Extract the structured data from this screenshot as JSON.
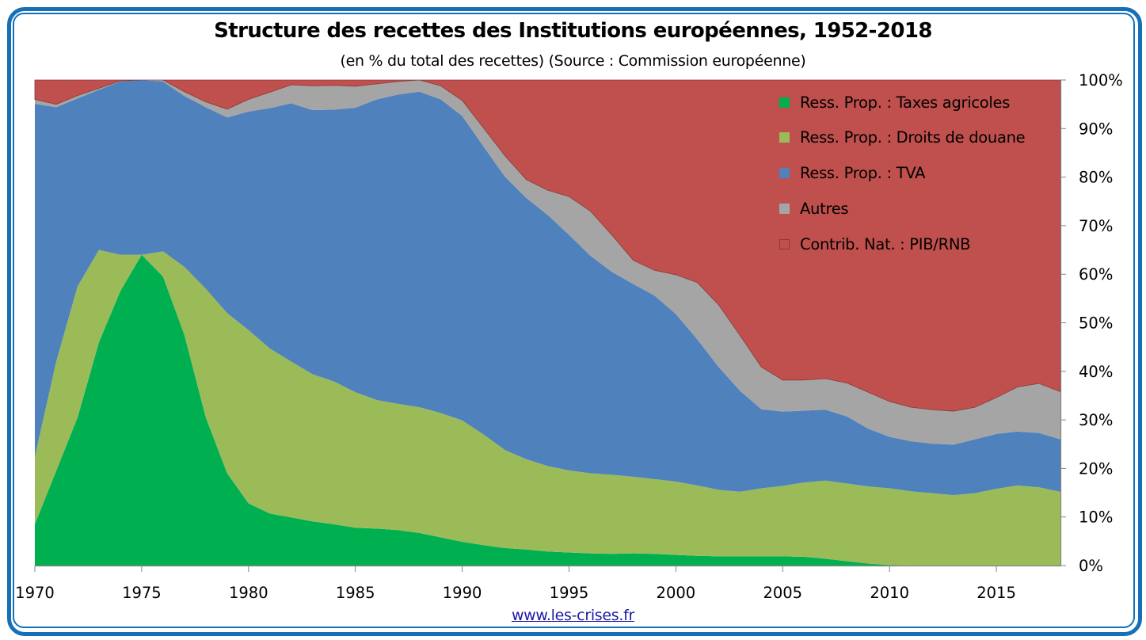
{
  "chart_data": {
    "type": "area",
    "stacked": true,
    "normalized_percent": true,
    "title": "Structure des recettes des Institutions européennes, 1952-2018",
    "subtitle": "(en % du total des recettes) (Source : Commission européenne)",
    "xlabel": "",
    "ylabel": "",
    "xlim": [
      1970,
      2018
    ],
    "ylim": [
      0,
      100
    ],
    "x_ticks": [
      "1970",
      "1975",
      "1980",
      "1985",
      "1990",
      "1995",
      "2000",
      "2005",
      "2010",
      "2015"
    ],
    "x_tick_values": [
      1970,
      1975,
      1980,
      1985,
      1990,
      1995,
      2000,
      2005,
      2010,
      2015
    ],
    "y_ticks": [
      "0%",
      "10%",
      "20%",
      "30%",
      "40%",
      "50%",
      "60%",
      "70%",
      "80%",
      "90%",
      "100%"
    ],
    "y_tick_values": [
      0,
      10,
      20,
      30,
      40,
      50,
      60,
      70,
      80,
      90,
      100
    ],
    "y_axis_side": "right",
    "grid": false,
    "legend_position": "top-right",
    "x": [
      1970,
      1971,
      1972,
      1973,
      1974,
      1975,
      1976,
      1977,
      1978,
      1979,
      1980,
      1981,
      1982,
      1983,
      1984,
      1985,
      1986,
      1987,
      1988,
      1989,
      1990,
      1991,
      1992,
      1993,
      1994,
      1995,
      1996,
      1997,
      1998,
      1999,
      2000,
      2001,
      2002,
      2003,
      2004,
      2005,
      2006,
      2007,
      2008,
      2009,
      2010,
      2011,
      2012,
      2013,
      2014,
      2015,
      2016,
      2017,
      2018
    ],
    "series": [
      {
        "name": "Ress. Prop. : Taxes agricoles",
        "color": "#00b050",
        "values": [
          8.5,
          19.5,
          30.5,
          46.0,
          56.5,
          64.0,
          59.5,
          47.5,
          30.5,
          19.0,
          12.8,
          10.7,
          9.9,
          9.1,
          8.5,
          7.8,
          7.6,
          7.3,
          6.7,
          5.8,
          4.9,
          4.2,
          3.6,
          3.3,
          2.9,
          2.7,
          2.5,
          2.4,
          2.5,
          2.4,
          2.2,
          2.0,
          1.9,
          1.9,
          1.9,
          1.9,
          1.8,
          1.4,
          0.9,
          0.4,
          0.1,
          0.0,
          0.0,
          0.0,
          0.0,
          0.0,
          0.0,
          0.0,
          0.0
        ]
      },
      {
        "name": "Ress. Prop. : Droits de douane",
        "color": "#9bbb59",
        "values": [
          13.9,
          22.5,
          27.0,
          19.0,
          7.5,
          0.0,
          5.2,
          14.0,
          26.5,
          33.0,
          35.7,
          34.0,
          32.1,
          30.3,
          29.4,
          27.9,
          26.5,
          26.0,
          25.9,
          25.6,
          25.0,
          22.8,
          20.2,
          18.6,
          17.6,
          16.9,
          16.5,
          16.3,
          15.8,
          15.4,
          15.1,
          14.5,
          13.7,
          13.3,
          14.0,
          14.5,
          15.3,
          16.1,
          16.0,
          15.9,
          15.8,
          15.3,
          14.9,
          14.5,
          14.9,
          15.8,
          16.5,
          16.1,
          15.2
        ]
      },
      {
        "name": "Ress. Prop. : TVA",
        "color": "#4f81bd",
        "values": [
          72.7,
          52.4,
          38.7,
          33.0,
          35.7,
          36.0,
          35.0,
          35.2,
          37.4,
          40.3,
          45.0,
          49.5,
          53.2,
          54.4,
          56.0,
          58.6,
          61.9,
          63.7,
          65.0,
          64.6,
          62.7,
          59.3,
          56.3,
          53.8,
          51.7,
          48.5,
          44.8,
          41.8,
          39.7,
          37.8,
          34.5,
          30.1,
          25.3,
          20.8,
          16.3,
          15.3,
          14.8,
          14.6,
          13.8,
          11.9,
          10.6,
          10.3,
          10.2,
          10.4,
          11.1,
          11.3,
          11.1,
          11.2,
          10.8
        ]
      },
      {
        "name": "Autres",
        "color": "#a5a5a5",
        "values": [
          0.9,
          0.6,
          0.6,
          0.3,
          0.1,
          0.0,
          0.3,
          0.9,
          1.1,
          1.7,
          2.5,
          3.3,
          3.8,
          5.0,
          5.0,
          4.4,
          3.2,
          2.7,
          2.4,
          2.8,
          3.2,
          3.8,
          4.3,
          3.8,
          5.1,
          7.9,
          9.2,
          7.6,
          4.9,
          5.2,
          8.1,
          11.7,
          12.8,
          11.4,
          8.7,
          6.5,
          6.3,
          6.4,
          6.9,
          7.5,
          7.3,
          7.0,
          7.0,
          6.9,
          6.6,
          7.5,
          9.2,
          10.2,
          9.8
        ]
      },
      {
        "name": "Contrib. Nat. : PIB/RNB",
        "color": "#c0504d",
        "values": [
          4.0,
          5.0,
          3.2,
          1.7,
          0.2,
          0.0,
          0.0,
          2.4,
          4.5,
          6.0,
          4.0,
          2.5,
          1.0,
          1.2,
          1.1,
          1.3,
          0.8,
          0.3,
          0.0,
          1.2,
          4.2,
          9.9,
          15.6,
          20.5,
          22.7,
          24.0,
          27.0,
          31.9,
          37.1,
          39.2,
          40.1,
          41.7,
          46.3,
          52.6,
          59.1,
          61.8,
          61.8,
          61.5,
          62.4,
          64.3,
          66.2,
          67.4,
          67.9,
          68.2,
          67.4,
          65.4,
          63.2,
          62.5,
          64.2
        ]
      }
    ]
  },
  "footer": {
    "link_text": "www.les-crises.fr"
  },
  "colors": {
    "frame": "#1470b8",
    "axis": "#868686",
    "link": "#1a1aa6"
  }
}
